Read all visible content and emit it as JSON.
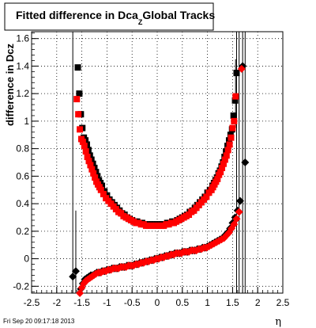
{
  "title": {
    "main": "Fitted difference in Dca",
    "subscript": "Z",
    "suffix": "Global Tracks"
  },
  "footer": {
    "timestamp": "Fri Sep 20 09:17:18 2013"
  },
  "chart_data": {
    "type": "scatter",
    "title": "Fitted difference in DcaZ Global Tracks",
    "xlabel": "η",
    "ylabel": "difference in Dcz",
    "xlim": [
      -2.5,
      2.5
    ],
    "ylim": [
      -0.25,
      1.65
    ],
    "grid": true,
    "x_ticks": [
      "-2.5",
      "-2",
      "-1.5",
      "-1",
      "-0.5",
      "0",
      "0.5",
      "1",
      "1.5",
      "2",
      "2.5"
    ],
    "y_ticks": [
      "-0.2",
      "0",
      "0.2",
      "0.4",
      "0.6",
      "0.8",
      "1",
      "1.2",
      "1.4",
      "1.6"
    ],
    "colors": {
      "black_series": "#000000",
      "red_series": "#ff0000"
    },
    "series": [
      {
        "color": "black",
        "marker": "square",
        "x": [
          -1.58,
          -1.55,
          -1.52,
          -1.49,
          -1.46,
          -1.43,
          -1.4,
          -1.37,
          -1.34,
          -1.31,
          -1.28,
          -1.25,
          -1.22,
          -1.19,
          -1.16,
          -1.13,
          -1.1,
          -1.05,
          -1.0,
          -0.95,
          -0.9,
          -0.85,
          -0.8,
          -0.75,
          -0.7,
          -0.65,
          -0.6,
          -0.55,
          -0.5,
          -0.45,
          -0.4,
          -0.35,
          -0.3,
          -0.25,
          -0.2,
          -0.15,
          -0.1,
          -0.05,
          0.0,
          0.05,
          0.1,
          0.15,
          0.2,
          0.25,
          0.3,
          0.35,
          0.4,
          0.45,
          0.5,
          0.55,
          0.6,
          0.65,
          0.7,
          0.75,
          0.8,
          0.85,
          0.9,
          0.95,
          1.0,
          1.05,
          1.1,
          1.13,
          1.16,
          1.19,
          1.22,
          1.25,
          1.28,
          1.31,
          1.34,
          1.37,
          1.4,
          1.43,
          1.46,
          1.49,
          1.52,
          1.55,
          1.58
        ],
        "y": [
          1.39,
          1.2,
          1.05,
          0.95,
          0.88,
          0.86,
          0.83,
          0.79,
          0.75,
          0.72,
          0.69,
          0.66,
          0.63,
          0.6,
          0.57,
          0.55,
          0.53,
          0.49,
          0.46,
          0.43,
          0.41,
          0.39,
          0.37,
          0.35,
          0.33,
          0.32,
          0.3,
          0.29,
          0.28,
          0.27,
          0.27,
          0.26,
          0.26,
          0.25,
          0.25,
          0.25,
          0.25,
          0.25,
          0.25,
          0.25,
          0.25,
          0.25,
          0.26,
          0.26,
          0.27,
          0.27,
          0.28,
          0.29,
          0.3,
          0.31,
          0.32,
          0.34,
          0.35,
          0.37,
          0.39,
          0.41,
          0.43,
          0.45,
          0.48,
          0.5,
          0.53,
          0.55,
          0.57,
          0.59,
          0.62,
          0.64,
          0.67,
          0.7,
          0.74,
          0.78,
          0.82,
          0.86,
          0.9,
          0.94,
          1.04,
          1.15,
          1.35
        ]
      },
      {
        "color": "red",
        "marker": "square",
        "x": [
          -1.6,
          -1.57,
          -1.54,
          -1.51,
          -1.48,
          -1.45,
          -1.42,
          -1.39,
          -1.36,
          -1.33,
          -1.3,
          -1.27,
          -1.24,
          -1.21,
          -1.18,
          -1.15,
          -1.12,
          -1.07,
          -1.02,
          -0.97,
          -0.92,
          -0.87,
          -0.82,
          -0.77,
          -0.72,
          -0.67,
          -0.62,
          -0.57,
          -0.52,
          -0.47,
          -0.42,
          -0.37,
          -0.32,
          -0.27,
          -0.22,
          -0.17,
          -0.12,
          -0.07,
          -0.02,
          0.03,
          0.08,
          0.13,
          0.18,
          0.23,
          0.28,
          0.33,
          0.38,
          0.43,
          0.48,
          0.53,
          0.58,
          0.63,
          0.68,
          0.73,
          0.78,
          0.83,
          0.88,
          0.93,
          0.98,
          1.03,
          1.08,
          1.11,
          1.14,
          1.17,
          1.2,
          1.23,
          1.26,
          1.29,
          1.32,
          1.35,
          1.38,
          1.41,
          1.44,
          1.47,
          1.5,
          1.53,
          1.56
        ],
        "y": [
          1.16,
          1.05,
          0.94,
          0.87,
          0.85,
          0.82,
          0.78,
          0.74,
          0.71,
          0.68,
          0.65,
          0.62,
          0.59,
          0.56,
          0.54,
          0.52,
          0.5,
          0.47,
          0.44,
          0.42,
          0.4,
          0.38,
          0.36,
          0.34,
          0.33,
          0.31,
          0.3,
          0.29,
          0.28,
          0.27,
          0.26,
          0.26,
          0.25,
          0.25,
          0.24,
          0.24,
          0.24,
          0.24,
          0.24,
          0.24,
          0.24,
          0.24,
          0.25,
          0.25,
          0.26,
          0.26,
          0.27,
          0.28,
          0.29,
          0.3,
          0.31,
          0.32,
          0.34,
          0.35,
          0.37,
          0.39,
          0.41,
          0.43,
          0.45,
          0.48,
          0.5,
          0.52,
          0.54,
          0.56,
          0.58,
          0.61,
          0.63,
          0.66,
          0.69,
          0.72,
          0.75,
          0.79,
          0.83,
          0.88,
          0.95,
          1.0,
          1.18
        ]
      },
      {
        "color": "black",
        "marker": "diamond",
        "x": [
          -1.68,
          -1.62,
          -1.56,
          -1.52,
          -1.48,
          -1.44,
          -1.4,
          -1.36,
          -1.32,
          -1.28,
          -1.24,
          -1.2,
          -1.15,
          -1.1,
          -1.05,
          -1.0,
          -0.95,
          -0.9,
          -0.85,
          -0.8,
          -0.75,
          -0.7,
          -0.65,
          -0.6,
          -0.55,
          -0.5,
          -0.45,
          -0.4,
          -0.35,
          -0.3,
          -0.25,
          -0.2,
          -0.15,
          -0.1,
          -0.05,
          0.0,
          0.05,
          0.1,
          0.15,
          0.2,
          0.25,
          0.3,
          0.35,
          0.4,
          0.45,
          0.5,
          0.55,
          0.6,
          0.65,
          0.7,
          0.75,
          0.8,
          0.85,
          0.9,
          0.95,
          1.0,
          1.05,
          1.1,
          1.15,
          1.2,
          1.25,
          1.3,
          1.35,
          1.4,
          1.45,
          1.5,
          1.55,
          1.6,
          1.65,
          1.7,
          1.75
        ],
        "y": [
          -0.13,
          -0.09,
          -0.27,
          -0.22,
          -0.18,
          -0.15,
          -0.14,
          -0.13,
          -0.12,
          -0.12,
          -0.11,
          -0.1,
          -0.1,
          -0.09,
          -0.09,
          -0.08,
          -0.08,
          -0.07,
          -0.07,
          -0.07,
          -0.06,
          -0.06,
          -0.06,
          -0.05,
          -0.05,
          -0.05,
          -0.04,
          -0.04,
          -0.03,
          -0.03,
          -0.02,
          -0.02,
          -0.01,
          -0.01,
          0.0,
          0.0,
          0.01,
          0.01,
          0.02,
          0.02,
          0.03,
          0.03,
          0.04,
          0.04,
          0.04,
          0.05,
          0.05,
          0.05,
          0.06,
          0.06,
          0.06,
          0.07,
          0.07,
          0.08,
          0.08,
          0.09,
          0.1,
          0.11,
          0.12,
          0.13,
          0.14,
          0.15,
          0.17,
          0.19,
          0.22,
          0.26,
          0.3,
          0.35,
          0.42,
          1.4,
          0.7
        ]
      },
      {
        "color": "red",
        "marker": "diamond",
        "x": [
          -1.54,
          -1.5,
          -1.46,
          -1.42,
          -1.38,
          -1.34,
          -1.3,
          -1.26,
          -1.22,
          -1.17,
          -1.12,
          -1.07,
          -1.02,
          -0.97,
          -0.92,
          -0.87,
          -0.82,
          -0.77,
          -0.72,
          -0.67,
          -0.62,
          -0.57,
          -0.52,
          -0.47,
          -0.42,
          -0.37,
          -0.32,
          -0.27,
          -0.22,
          -0.17,
          -0.12,
          -0.07,
          -0.02,
          0.03,
          0.08,
          0.13,
          0.18,
          0.23,
          0.28,
          0.33,
          0.38,
          0.43,
          0.48,
          0.53,
          0.58,
          0.63,
          0.68,
          0.73,
          0.78,
          0.83,
          0.88,
          0.93,
          0.98,
          1.03,
          1.08,
          1.13,
          1.18,
          1.23,
          1.28,
          1.33,
          1.38,
          1.43,
          1.48,
          1.53,
          1.58,
          1.63,
          1.68
        ],
        "y": [
          -0.25,
          -0.21,
          -0.18,
          -0.16,
          -0.15,
          -0.14,
          -0.13,
          -0.12,
          -0.11,
          -0.1,
          -0.1,
          -0.09,
          -0.09,
          -0.08,
          -0.08,
          -0.07,
          -0.07,
          -0.07,
          -0.06,
          -0.06,
          -0.06,
          -0.05,
          -0.05,
          -0.05,
          -0.04,
          -0.04,
          -0.03,
          -0.03,
          -0.02,
          -0.02,
          -0.01,
          -0.01,
          0.0,
          0.0,
          0.01,
          0.01,
          0.02,
          0.02,
          0.03,
          0.03,
          0.04,
          0.04,
          0.04,
          0.05,
          0.05,
          0.05,
          0.06,
          0.06,
          0.06,
          0.07,
          0.07,
          0.08,
          0.08,
          0.09,
          0.1,
          0.11,
          0.12,
          0.13,
          0.14,
          0.15,
          0.17,
          0.19,
          0.22,
          0.25,
          0.29,
          0.34,
          1.38
        ]
      }
    ],
    "error_bars": [
      {
        "x": -1.68,
        "y_low": -0.25,
        "y_high": 1.65,
        "color": "black"
      },
      {
        "x": -1.62,
        "y_low": -0.25,
        "y_high": 0.35,
        "color": "black"
      },
      {
        "x": 1.58,
        "y_low": -0.25,
        "y_high": 1.65,
        "color": "black"
      },
      {
        "x": 1.63,
        "y_low": -0.25,
        "y_high": 1.65,
        "color": "black"
      },
      {
        "x": 1.7,
        "y_low": -0.25,
        "y_high": 1.65,
        "color": "black"
      },
      {
        "x": 1.75,
        "y_low": -0.25,
        "y_high": 1.65,
        "color": "black"
      },
      {
        "x": 1.56,
        "y_low": 0.95,
        "y_high": 1.45,
        "color": "black"
      }
    ]
  }
}
